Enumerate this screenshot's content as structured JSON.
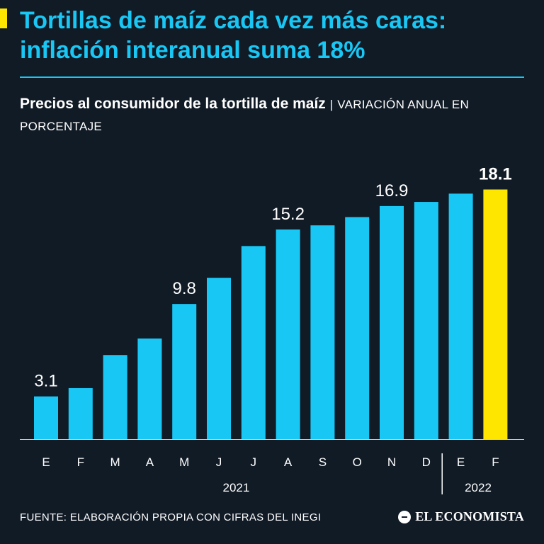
{
  "headline": {
    "line1": "Tortillas de maíz cada vez más caras:",
    "line2": "inflación interanual suma 18%"
  },
  "subtitle": {
    "strong": "Precios al consumidor de la tortilla de maíz",
    "separator": "|",
    "light": "VARIACIÓN ANUAL EN PORCENTAJE"
  },
  "colors": {
    "background": "#111b26",
    "bar": "#19c7f5",
    "highlight": "#ffe600",
    "text": "#ffffff"
  },
  "chart_data": {
    "type": "bar",
    "title": "Precios al consumidor de la tortilla de maíz",
    "ylabel": "Variación anual en porcentaje",
    "xlabel": "",
    "categories": [
      "E",
      "F",
      "M",
      "A",
      "M",
      "J",
      "J",
      "A",
      "S",
      "O",
      "N",
      "D",
      "E",
      "F"
    ],
    "years": [
      {
        "label": "2021",
        "start": 0,
        "end": 11
      },
      {
        "label": "2022",
        "start": 12,
        "end": 13
      }
    ],
    "values": [
      3.1,
      3.7,
      6.1,
      7.3,
      9.8,
      11.7,
      14.0,
      15.2,
      15.5,
      16.1,
      16.9,
      17.2,
      17.8,
      18.1
    ],
    "labels": [
      {
        "index": 0,
        "text": "3.1"
      },
      {
        "index": 4,
        "text": "9.8"
      },
      {
        "index": 7,
        "text": "15.2"
      },
      {
        "index": 10,
        "text": "16.9"
      },
      {
        "index": 13,
        "text": "18.1"
      }
    ],
    "highlight_index": 13,
    "ylim": [
      0,
      19
    ]
  },
  "footer": {
    "source": "FUENTE: ELABORACIÓN PROPIA CON CIFRAS DEL INEGI",
    "brand": "EL ECONOMISTA"
  }
}
